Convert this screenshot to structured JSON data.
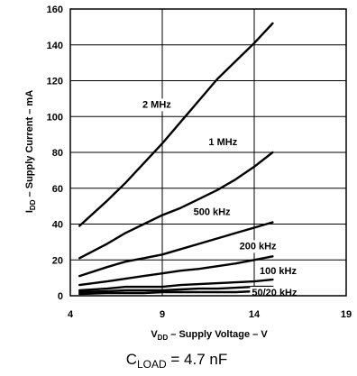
{
  "chart_data": {
    "type": "line",
    "xlim": [
      4,
      19
    ],
    "ylim": [
      0,
      160
    ],
    "x_ticks": [
      "4",
      "9",
      "14",
      "19"
    ],
    "y_ticks": [
      "0",
      "20",
      "40",
      "60",
      "80",
      "100",
      "120",
      "140",
      "160"
    ],
    "grid": true,
    "xlabel": {
      "sub": "DD",
      "main": " – Supply Voltage – V"
    },
    "ylabel": {
      "sub": "DD",
      "main": " – Supply Current – mA"
    },
    "series": [
      {
        "name": "2 MHz",
        "x": [
          4.5,
          6,
          7,
          8,
          9,
          10,
          11,
          12,
          13,
          14,
          15
        ],
        "y": [
          39,
          53,
          63,
          74,
          85,
          97,
          109,
          121,
          131,
          141,
          152
        ]
      },
      {
        "name": "1 MHz",
        "x": [
          4.5,
          6,
          7,
          8,
          9,
          10,
          11,
          12,
          13,
          14,
          15
        ],
        "y": [
          21,
          29,
          35,
          40,
          45,
          49,
          54,
          59,
          65,
          72,
          80
        ]
      },
      {
        "name": "500 kHz",
        "x": [
          4.5,
          6,
          7,
          8,
          9,
          10,
          11,
          12,
          13,
          14,
          15
        ],
        "y": [
          11,
          16,
          19,
          21,
          23,
          26,
          29,
          32,
          35,
          38,
          41
        ]
      },
      {
        "name": "200 kHz",
        "x": [
          4.5,
          6,
          7,
          8,
          9,
          10,
          11,
          12,
          13,
          14,
          15
        ],
        "y": [
          6,
          8,
          9.5,
          11,
          12.5,
          14,
          15,
          16.5,
          18,
          20,
          22
        ]
      },
      {
        "name": "100 kHz",
        "x": [
          4.5,
          6,
          7,
          8,
          9,
          10,
          11,
          12,
          13,
          14,
          15
        ],
        "y": [
          3,
          4,
          5,
          5,
          5,
          6,
          6.5,
          7,
          7.5,
          8,
          9
        ]
      },
      {
        "name": "50 kHz",
        "x": [
          4.5,
          6,
          7,
          8,
          9,
          10,
          11,
          12,
          13,
          14,
          15
        ],
        "y": [
          2,
          2.5,
          3,
          3,
          3,
          3.5,
          4,
          4,
          4.5,
          5,
          5
        ]
      },
      {
        "name": "20 kHz",
        "x": [
          4.5,
          6,
          7,
          8,
          9,
          10,
          11,
          12,
          13,
          14,
          15
        ],
        "y": [
          1,
          1.5,
          1.5,
          1.5,
          2,
          2,
          2,
          2,
          2,
          2.5,
          2.5
        ]
      }
    ],
    "series_labels": [
      {
        "text": "2 MHz",
        "x": 8.7,
        "y": 107
      },
      {
        "text": "1 MHz",
        "x": 12.3,
        "y": 86
      },
      {
        "text": "500 kHz",
        "x": 11.7,
        "y": 47
      },
      {
        "text": "200 kHz",
        "x": 14.2,
        "y": 28
      },
      {
        "text": "100 kHz",
        "x": 15.3,
        "y": 14
      },
      {
        "text": "50/20 kHz",
        "x": 15.1,
        "y": 2
      }
    ],
    "caption": {
      "prefix": "C",
      "sub": "LOAD",
      "rest": " = 4.7 nF"
    }
  }
}
